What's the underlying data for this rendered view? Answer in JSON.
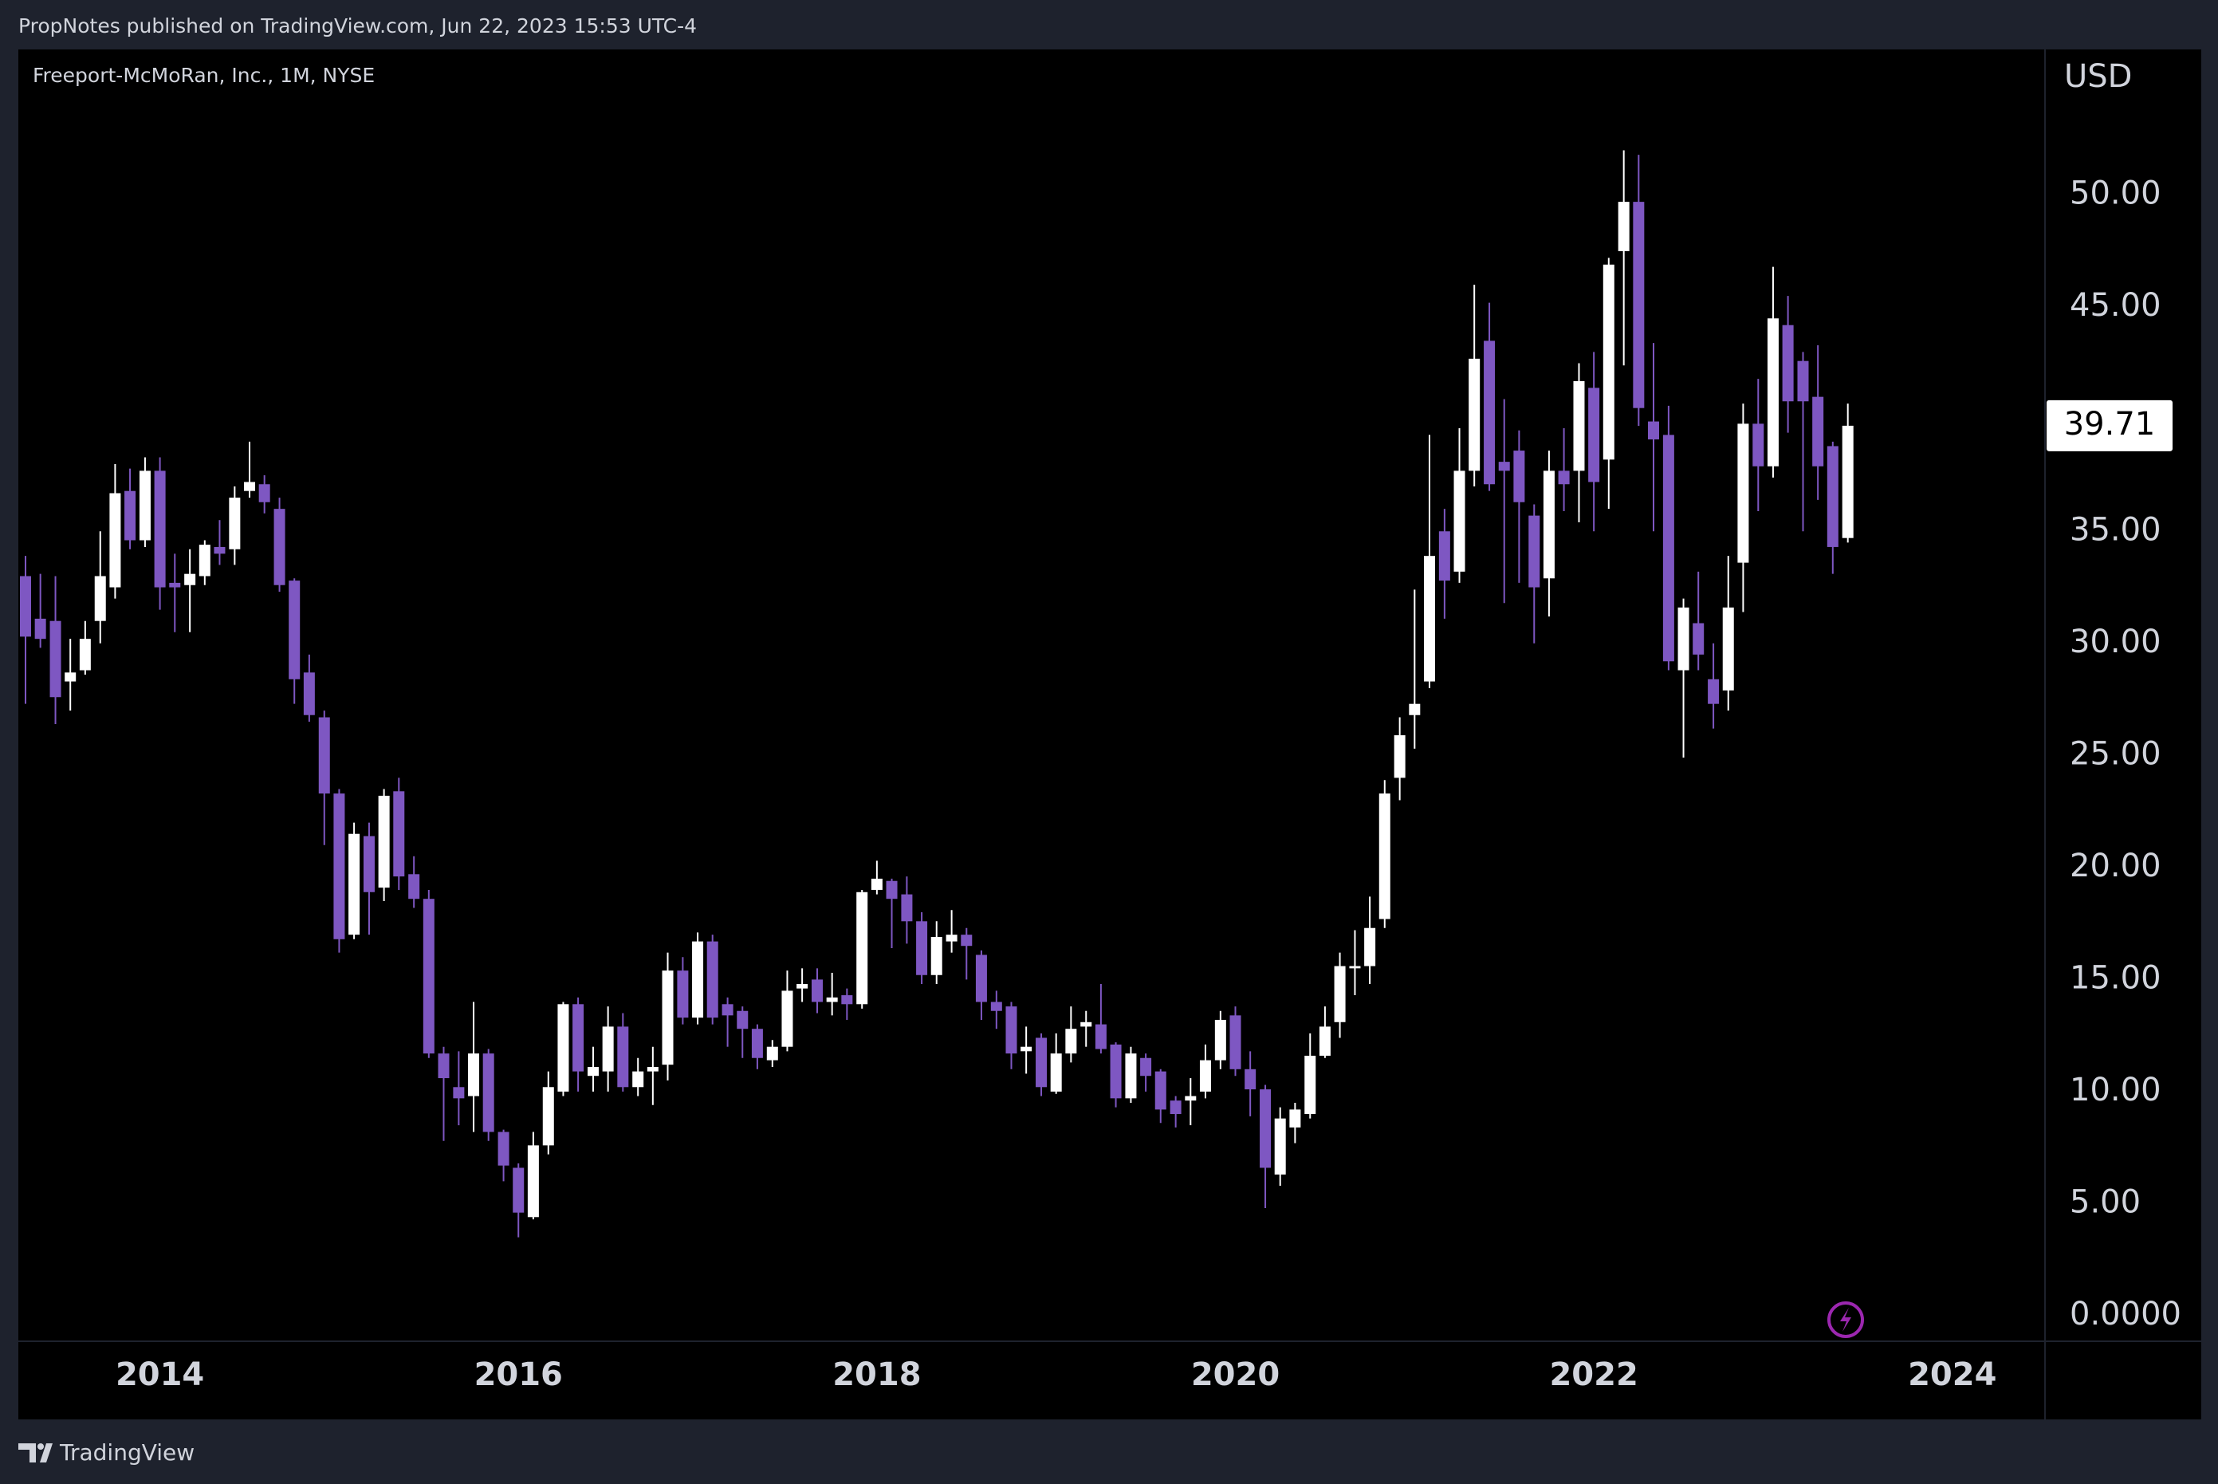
{
  "header": "PropNotes published on TradingView.com, Jun 22, 2023 15:53 UTC-4",
  "footer": "TradingView",
  "chart_data": {
    "type": "candlestick",
    "title": "Freeport-McMoRan, Inc., 1M, NYSE",
    "y_label": "USD",
    "up_color": "#ffffff",
    "down_color": "#7e57c2",
    "last_price": 39.71,
    "xlim": [
      2013.21,
      2024.517
    ],
    "xticks": [
      2014,
      2016,
      2018,
      2020,
      2022,
      2024
    ],
    "ylim": [
      -1.14,
      56.5
    ],
    "yticks": [
      {
        "value": 0,
        "label": "0.0000"
      },
      {
        "value": 5,
        "label": "5.00"
      },
      {
        "value": 10,
        "label": "10.00"
      },
      {
        "value": 15,
        "label": "15.00"
      },
      {
        "value": 20,
        "label": "20.00"
      },
      {
        "value": 25,
        "label": "25.00"
      },
      {
        "value": 30,
        "label": "30.00"
      },
      {
        "value": 35,
        "label": "35.00"
      },
      {
        "value": 40,
        "label": "40.00"
      },
      {
        "value": 45,
        "label": "45.00"
      },
      {
        "value": 50,
        "label": "50.00"
      }
    ],
    "x": [
      2013.25,
      2013.333,
      2013.417,
      2013.5,
      2013.583,
      2013.667,
      2013.75,
      2013.833,
      2013.917,
      2014,
      2014.083,
      2014.167,
      2014.25,
      2014.333,
      2014.417,
      2014.5,
      2014.583,
      2014.667,
      2014.75,
      2014.833,
      2014.917,
      2015,
      2015.083,
      2015.167,
      2015.25,
      2015.333,
      2015.417,
      2015.5,
      2015.583,
      2015.667,
      2015.75,
      2015.833,
      2015.917,
      2016,
      2016.083,
      2016.167,
      2016.25,
      2016.333,
      2016.417,
      2016.5,
      2016.583,
      2016.667,
      2016.75,
      2016.833,
      2016.917,
      2017,
      2017.083,
      2017.167,
      2017.25,
      2017.333,
      2017.417,
      2017.5,
      2017.583,
      2017.667,
      2017.75,
      2017.833,
      2017.917,
      2018,
      2018.083,
      2018.167,
      2018.25,
      2018.333,
      2018.417,
      2018.5,
      2018.583,
      2018.667,
      2018.75,
      2018.833,
      2018.917,
      2019,
      2019.083,
      2019.167,
      2019.25,
      2019.333,
      2019.417,
      2019.5,
      2019.583,
      2019.667,
      2019.75,
      2019.833,
      2019.917,
      2020,
      2020.083,
      2020.167,
      2020.25,
      2020.333,
      2020.417,
      2020.5,
      2020.583,
      2020.667,
      2020.75,
      2020.833,
      2020.917,
      2021,
      2021.083,
      2021.167,
      2021.25,
      2021.333,
      2021.417,
      2021.5,
      2021.583,
      2021.667,
      2021.75,
      2021.833,
      2021.917,
      2022,
      2022.083,
      2022.167,
      2022.25,
      2022.333,
      2022.417,
      2022.5,
      2022.583,
      2022.667,
      2022.75,
      2022.833,
      2022.917,
      2023,
      2023.083,
      2023.167,
      2023.25,
      2023.333,
      2023.417
    ],
    "open": [
      33.0,
      31.1,
      31.0,
      28.3,
      28.8,
      31.0,
      32.5,
      36.8,
      34.6,
      37.7,
      32.7,
      32.6,
      33.0,
      34.3,
      34.2,
      36.8,
      37.1,
      36.0,
      32.8,
      28.7,
      26.7,
      23.3,
      17.0,
      21.4,
      19.1,
      23.4,
      19.7,
      18.6,
      11.7,
      10.2,
      9.8,
      11.7,
      8.2,
      6.6,
      4.4,
      7.6,
      10.0,
      13.9,
      10.7,
      10.9,
      12.9,
      10.2,
      10.9,
      11.2,
      15.4,
      13.3,
      16.7,
      13.9,
      13.6,
      12.8,
      11.4,
      12.0,
      14.6,
      15.0,
      14.0,
      14.3,
      13.9,
      19.0,
      19.4,
      18.8,
      17.6,
      15.2,
      16.7,
      17.0,
      16.1,
      14.0,
      13.8,
      11.8,
      12.4,
      10.0,
      11.7,
      12.9,
      13.0,
      12.1,
      9.7,
      11.5,
      10.9,
      9.6,
      9.6,
      10.0,
      11.4,
      13.4,
      11.0,
      10.1,
      6.3,
      8.4,
      9.0,
      11.6,
      13.1,
      15.5,
      15.6,
      17.7,
      24.0,
      26.8,
      28.3,
      35.0,
      33.2,
      37.7,
      43.5,
      38.1,
      38.6,
      35.7,
      32.9,
      37.7,
      37.7,
      41.4,
      38.2,
      47.5,
      49.7,
      39.9,
      39.3,
      28.8,
      30.9,
      28.4,
      27.9,
      33.6,
      39.8,
      37.9,
      44.2,
      42.6,
      41.0,
      38.8,
      34.7
    ],
    "high": [
      33.9,
      33.1,
      33.0,
      30.2,
      31.0,
      35.0,
      38.0,
      37.8,
      38.3,
      38.3,
      34.0,
      34.2,
      34.6,
      35.5,
      37.0,
      39.0,
      37.5,
      36.5,
      32.9,
      29.5,
      27.0,
      23.5,
      22.0,
      22.0,
      23.5,
      24.0,
      20.5,
      19.0,
      12.0,
      11.8,
      14.0,
      11.9,
      8.3,
      6.8,
      8.2,
      10.9,
      14.0,
      14.2,
      12.0,
      13.8,
      13.5,
      11.5,
      12.0,
      16.2,
      16.0,
      17.1,
      17.0,
      14.2,
      13.8,
      13.0,
      12.3,
      15.4,
      15.5,
      15.5,
      15.3,
      14.6,
      19.0,
      20.3,
      19.5,
      19.6,
      18.0,
      17.6,
      18.1,
      17.3,
      16.3,
      14.5,
      14.0,
      12.9,
      12.6,
      12.6,
      13.8,
      13.6,
      14.8,
      12.2,
      12.0,
      11.7,
      11.0,
      9.8,
      10.6,
      12.1,
      13.6,
      13.8,
      11.8,
      10.3,
      9.3,
      9.5,
      12.6,
      13.8,
      16.2,
      17.2,
      18.7,
      23.9,
      26.7,
      32.4,
      39.3,
      36.0,
      39.6,
      46.0,
      45.2,
      40.9,
      39.5,
      36.2,
      38.6,
      39.6,
      42.5,
      43.0,
      47.2,
      52.0,
      51.8,
      43.4,
      40.6,
      32.0,
      33.2,
      30.0,
      33.9,
      40.7,
      41.8,
      46.8,
      45.5,
      43.0,
      43.3,
      39.0,
      40.7
    ],
    "low": [
      27.3,
      29.8,
      26.4,
      27.0,
      28.6,
      30.0,
      32.0,
      34.2,
      34.3,
      31.5,
      30.5,
      30.5,
      32.6,
      33.5,
      33.5,
      36.5,
      35.8,
      32.3,
      27.3,
      26.5,
      21.0,
      16.2,
      16.8,
      17.0,
      18.5,
      19.0,
      18.2,
      11.5,
      7.8,
      8.5,
      8.2,
      7.8,
      6.0,
      3.5,
      4.3,
      7.2,
      9.8,
      10.0,
      10.0,
      10.0,
      10.0,
      9.8,
      9.4,
      10.5,
      13.0,
      13.0,
      13.0,
      12.0,
      11.5,
      11.0,
      11.1,
      11.8,
      14.0,
      13.5,
      13.4,
      13.2,
      13.7,
      18.8,
      16.4,
      16.6,
      14.8,
      14.8,
      16.2,
      15.0,
      13.2,
      12.8,
      11.0,
      10.8,
      9.8,
      9.9,
      11.3,
      12.0,
      11.7,
      9.3,
      9.5,
      10.0,
      8.6,
      8.4,
      8.5,
      9.7,
      11.0,
      10.7,
      8.9,
      4.8,
      5.8,
      7.7,
      8.8,
      11.5,
      12.4,
      14.3,
      14.8,
      17.3,
      23.0,
      25.3,
      28.0,
      31.1,
      32.7,
      37.0,
      36.8,
      31.8,
      32.7,
      30.0,
      31.2,
      35.9,
      35.4,
      35.0,
      36.0,
      42.4,
      39.7,
      35.0,
      28.8,
      24.9,
      28.8,
      26.2,
      27.0,
      31.4,
      35.9,
      37.4,
      39.4,
      35.0,
      36.4,
      33.1,
      34.5
    ],
    "close": [
      30.3,
      30.2,
      27.6,
      28.7,
      30.2,
      33.0,
      36.7,
      34.6,
      37.7,
      32.5,
      32.5,
      33.1,
      34.4,
      34.0,
      36.5,
      37.2,
      36.3,
      32.6,
      28.4,
      26.8,
      23.3,
      16.8,
      21.5,
      18.9,
      23.2,
      19.6,
      18.6,
      11.7,
      10.6,
      9.7,
      11.7,
      8.2,
      6.7,
      4.6,
      7.6,
      10.2,
      13.9,
      10.9,
      11.1,
      12.9,
      10.2,
      10.9,
      11.1,
      15.4,
      13.3,
      16.7,
      13.3,
      13.4,
      12.8,
      11.5,
      12.0,
      14.5,
      14.8,
      14.0,
      14.2,
      13.9,
      18.9,
      19.5,
      18.6,
      17.6,
      15.2,
      16.9,
      17.0,
      16.5,
      14.0,
      13.6,
      11.7,
      12.0,
      10.2,
      11.7,
      12.8,
      13.1,
      11.9,
      9.7,
      11.7,
      10.7,
      9.2,
      9.0,
      9.8,
      11.4,
      13.2,
      11.0,
      10.1,
      6.6,
      8.8,
      9.2,
      11.6,
      12.9,
      15.6,
      15.6,
      17.3,
      23.3,
      25.9,
      27.3,
      33.9,
      32.8,
      37.7,
      42.7,
      37.1,
      37.7,
      36.3,
      32.5,
      37.7,
      37.1,
      41.7,
      37.2,
      46.9,
      49.7,
      40.5,
      39.1,
      29.2,
      31.6,
      29.5,
      27.3,
      31.6,
      39.8,
      37.9,
      44.5,
      40.8,
      40.8,
      37.9,
      34.3,
      39.71
    ]
  }
}
